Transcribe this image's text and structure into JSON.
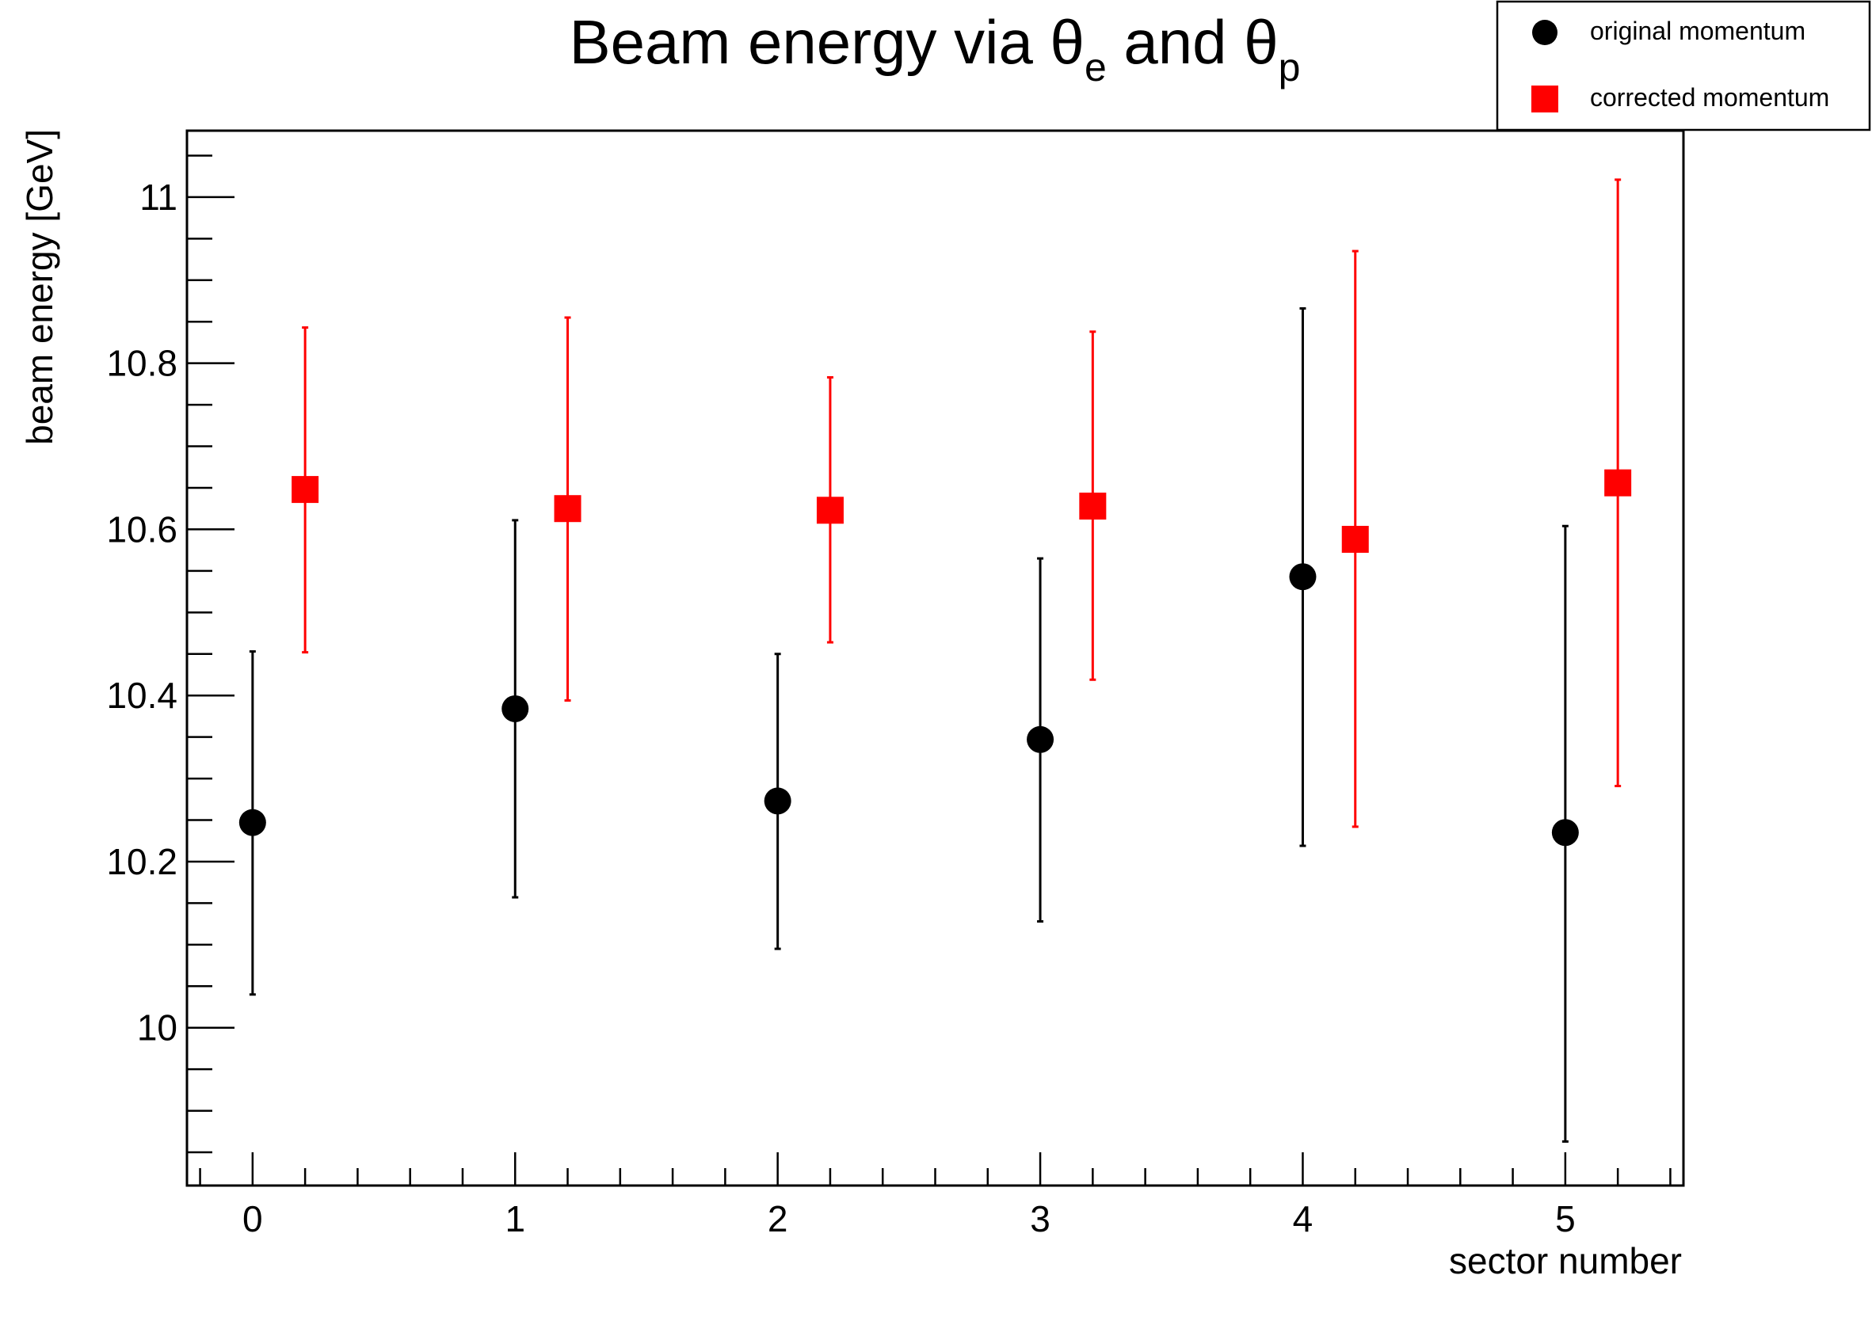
{
  "chart_data": {
    "type": "scatter",
    "title": {
      "prefix": "Beam energy via ",
      "sym1": "θ",
      "sub1": "e",
      "middle": " and ",
      "sym2": "θ",
      "sub2": "p"
    },
    "xlabel": "sector number",
    "ylabel": "beam energy [GeV]",
    "xlim": [
      -0.25,
      5.45
    ],
    "ylim": [
      9.81,
      11.08
    ],
    "x_ticks": [
      {
        "value": 0,
        "label": "0"
      },
      {
        "value": 1,
        "label": "1"
      },
      {
        "value": 2,
        "label": "2"
      },
      {
        "value": 3,
        "label": "3"
      },
      {
        "value": 4,
        "label": "4"
      },
      {
        "value": 5,
        "label": "5"
      }
    ],
    "y_ticks": [
      {
        "value": 10.0,
        "label": "10"
      },
      {
        "value": 10.2,
        "label": "10.2"
      },
      {
        "value": 10.4,
        "label": "10.4"
      },
      {
        "value": 10.6,
        "label": "10.6"
      },
      {
        "value": 10.8,
        "label": "10.8"
      },
      {
        "value": 11.0,
        "label": "11"
      }
    ],
    "grid": false,
    "legend_position": "top-right",
    "series": [
      {
        "name": "original momentum",
        "marker": "circle",
        "color": "#000000",
        "points": [
          {
            "x": 0,
            "y": 10.247,
            "err_low": 10.04,
            "err_high": 10.453
          },
          {
            "x": 1,
            "y": 10.384,
            "err_low": 10.157,
            "err_high": 10.611
          },
          {
            "x": 2,
            "y": 10.273,
            "err_low": 10.095,
            "err_high": 10.45
          },
          {
            "x": 3,
            "y": 10.347,
            "err_low": 10.128,
            "err_high": 10.565
          },
          {
            "x": 4,
            "y": 10.543,
            "err_low": 10.219,
            "err_high": 10.866
          },
          {
            "x": 5,
            "y": 10.235,
            "err_low": 9.863,
            "err_high": 10.604
          }
        ]
      },
      {
        "name": "corrected momentum",
        "marker": "square",
        "color": "#ff0000",
        "points": [
          {
            "x": 0.2,
            "y": 10.648,
            "err_low": 10.452,
            "err_high": 10.843
          },
          {
            "x": 1.2,
            "y": 10.625,
            "err_low": 10.394,
            "err_high": 10.855
          },
          {
            "x": 2.2,
            "y": 10.623,
            "err_low": 10.464,
            "err_high": 10.783
          },
          {
            "x": 3.2,
            "y": 10.628,
            "err_low": 10.419,
            "err_high": 10.838
          },
          {
            "x": 4.2,
            "y": 10.588,
            "err_low": 10.242,
            "err_high": 10.935
          },
          {
            "x": 5.2,
            "y": 10.656,
            "err_low": 10.291,
            "err_high": 11.021
          }
        ]
      }
    ]
  }
}
